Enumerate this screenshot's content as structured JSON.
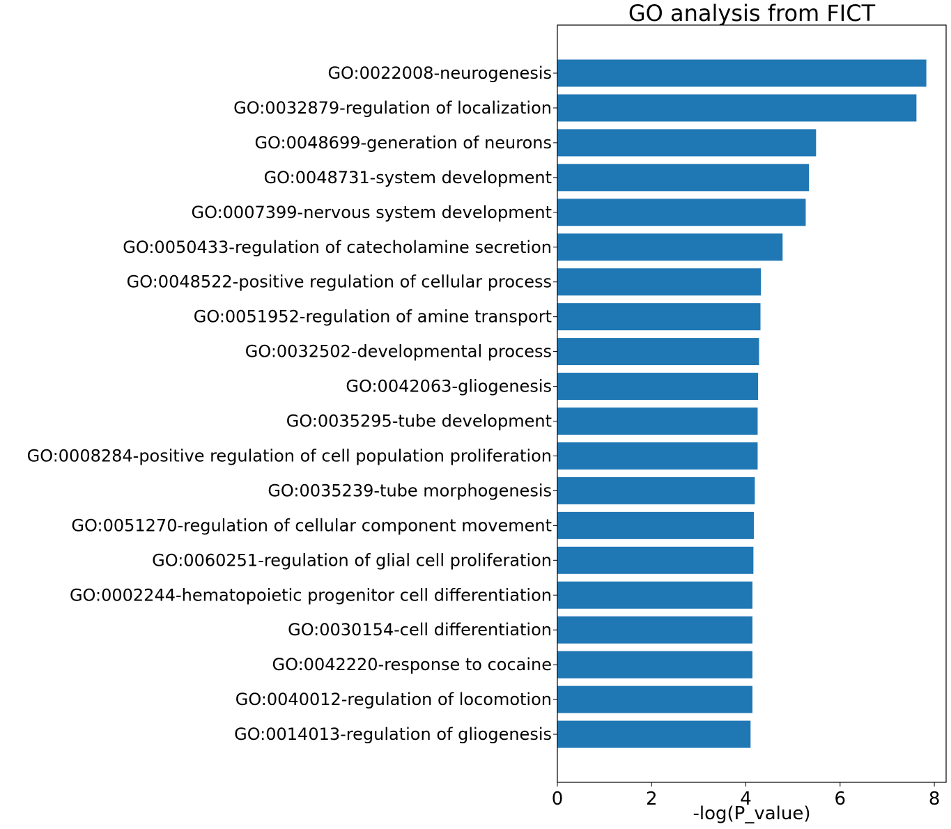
{
  "chart_data": {
    "type": "bar",
    "orientation": "horizontal",
    "title": "GO analysis from FICT",
    "xlabel": "-log(P_value)",
    "ylabel": "",
    "xlim": [
      0,
      8.25
    ],
    "xticks": [
      0,
      2,
      4,
      6,
      8
    ],
    "bar_color": "#1f77b4",
    "grid": false,
    "categories": [
      "GO:0022008-neurogenesis",
      "GO:0032879-regulation of localization",
      "GO:0048699-generation of neurons",
      "GO:0048731-system development",
      "GO:0007399-nervous system development",
      "GO:0050433-regulation of catecholamine secretion",
      "GO:0048522-positive regulation of cellular process",
      "GO:0051952-regulation of amine transport",
      "GO:0032502-developmental process",
      "GO:0042063-gliogenesis",
      "GO:0035295-tube development",
      "GO:0008284-positive regulation of cell population proliferation",
      "GO:0035239-tube morphogenesis",
      "GO:0051270-regulation of cellular component movement",
      "GO:0060251-regulation of glial cell proliferation",
      "GO:0002244-hematopoietic progenitor cell differentiation",
      "GO:0030154-cell differentiation",
      "GO:0042220-response to cocaine",
      "GO:0040012-regulation of locomotion",
      "GO:0014013-regulation of gliogenesis"
    ],
    "values": [
      7.83,
      7.62,
      5.49,
      5.34,
      5.27,
      4.78,
      4.32,
      4.31,
      4.28,
      4.26,
      4.25,
      4.25,
      4.19,
      4.17,
      4.16,
      4.14,
      4.14,
      4.14,
      4.14,
      4.1
    ]
  }
}
